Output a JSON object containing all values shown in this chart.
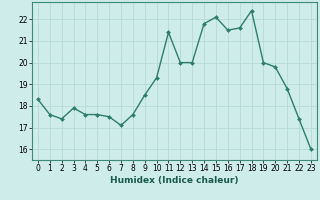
{
  "x": [
    0,
    1,
    2,
    3,
    4,
    5,
    6,
    7,
    8,
    9,
    10,
    11,
    12,
    13,
    14,
    15,
    16,
    17,
    18,
    19,
    20,
    21,
    22,
    23
  ],
  "y": [
    18.3,
    17.6,
    17.4,
    17.9,
    17.6,
    17.6,
    17.5,
    17.1,
    17.6,
    18.5,
    19.3,
    21.4,
    20.0,
    20.0,
    21.8,
    22.1,
    21.5,
    21.6,
    22.4,
    20.0,
    19.8,
    18.8,
    17.4,
    16.0
  ],
  "line_color": "#2e7d6e",
  "marker": "D",
  "markersize": 2.0,
  "linewidth": 1.0,
  "background_color": "#ceecea",
  "grid_color": "#b8dbd8",
  "xlabel": "Humidex (Indice chaleur)",
  "ylabel": "",
  "title": "",
  "xlim": [
    -0.5,
    23.5
  ],
  "ylim": [
    15.5,
    22.8
  ],
  "yticks": [
    16,
    17,
    18,
    19,
    20,
    21,
    22
  ],
  "xticks": [
    0,
    1,
    2,
    3,
    4,
    5,
    6,
    7,
    8,
    9,
    10,
    11,
    12,
    13,
    14,
    15,
    16,
    17,
    18,
    19,
    20,
    21,
    22,
    23
  ],
  "tick_fontsize": 5.5,
  "label_fontsize": 6.5,
  "spine_color": "#3d8a7a"
}
